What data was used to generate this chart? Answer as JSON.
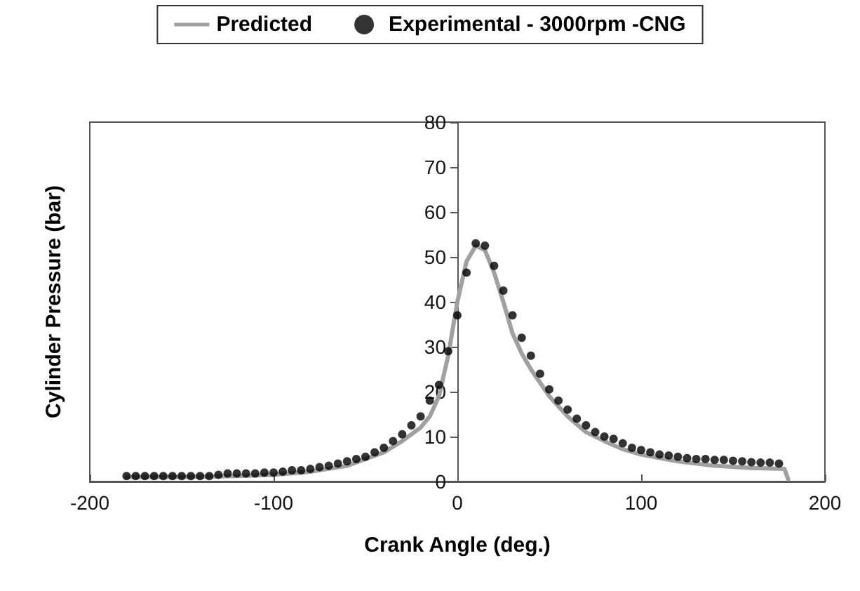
{
  "chart_data": {
    "type": "line",
    "xlabel": "Crank Angle (deg.)",
    "ylabel": "Cylinder Pressure (bar)",
    "xlim": [
      -200,
      200
    ],
    "xticks": [
      -200,
      -100,
      0,
      100,
      200
    ],
    "ylim": [
      0,
      80
    ],
    "yticks": [
      0,
      10,
      20,
      30,
      40,
      50,
      60,
      70,
      80
    ],
    "grid": false,
    "legend": "top",
    "series": [
      {
        "name": "Predicted",
        "type": "line",
        "color": "#a0a0a0",
        "marker": "none",
        "line_style": "solid",
        "x": [
          -180,
          -150,
          -120,
          -100,
          -80,
          -60,
          -50,
          -40,
          -30,
          -20,
          -15,
          -10,
          -5,
          0,
          5,
          10,
          15,
          20,
          25,
          30,
          35,
          40,
          50,
          60,
          70,
          80,
          90,
          100,
          120,
          140,
          160,
          178,
          180
        ],
        "values": [
          1,
          1,
          1.2,
          1.5,
          2.2,
          3.5,
          5,
          6.5,
          9,
          12,
          14.5,
          19,
          28,
          40,
          49,
          52.5,
          51.5,
          46.5,
          40,
          33,
          28.5,
          25,
          19,
          14.5,
          11,
          9,
          7.2,
          6,
          4.5,
          3.5,
          3,
          2.8,
          0.5
        ]
      },
      {
        "name": "Experimental - 3000rpm -CNG",
        "type": "scatter",
        "color": "#000000",
        "marker": "circle",
        "x": [
          -180,
          -175,
          -170,
          -165,
          -160,
          -155,
          -150,
          -145,
          -140,
          -135,
          -130,
          -125,
          -120,
          -115,
          -110,
          -105,
          -100,
          -95,
          -90,
          -85,
          -80,
          -75,
          -70,
          -65,
          -60,
          -55,
          -50,
          -45,
          -40,
          -35,
          -30,
          -25,
          -20,
          -15,
          -10,
          -5,
          0,
          5,
          10,
          15,
          20,
          25,
          30,
          35,
          40,
          45,
          50,
          55,
          60,
          65,
          70,
          75,
          80,
          85,
          90,
          95,
          100,
          105,
          110,
          115,
          120,
          125,
          130,
          135,
          140,
          145,
          150,
          155,
          160,
          165,
          170,
          175
        ],
        "values": [
          1.2,
          1.2,
          1.2,
          1.2,
          1.2,
          1.2,
          1.2,
          1.2,
          1.2,
          1.2,
          1.5,
          1.8,
          1.8,
          1.8,
          1.8,
          2,
          2,
          2.2,
          2.5,
          2.5,
          2.8,
          3.2,
          3.5,
          4,
          4.5,
          5,
          5.5,
          6.5,
          7.5,
          9,
          10.5,
          12.5,
          14.5,
          18,
          21.5,
          29,
          37,
          46.5,
          53,
          52.5,
          48,
          42.5,
          37,
          32,
          28,
          24,
          20.5,
          18,
          16,
          14,
          12.5,
          11,
          10,
          9.5,
          8.5,
          7.5,
          7,
          6.5,
          6,
          5.8,
          5.5,
          5.2,
          5,
          5,
          4.8,
          4.8,
          4.6,
          4.5,
          4.3,
          4.2,
          4.2,
          4
        ]
      }
    ]
  }
}
